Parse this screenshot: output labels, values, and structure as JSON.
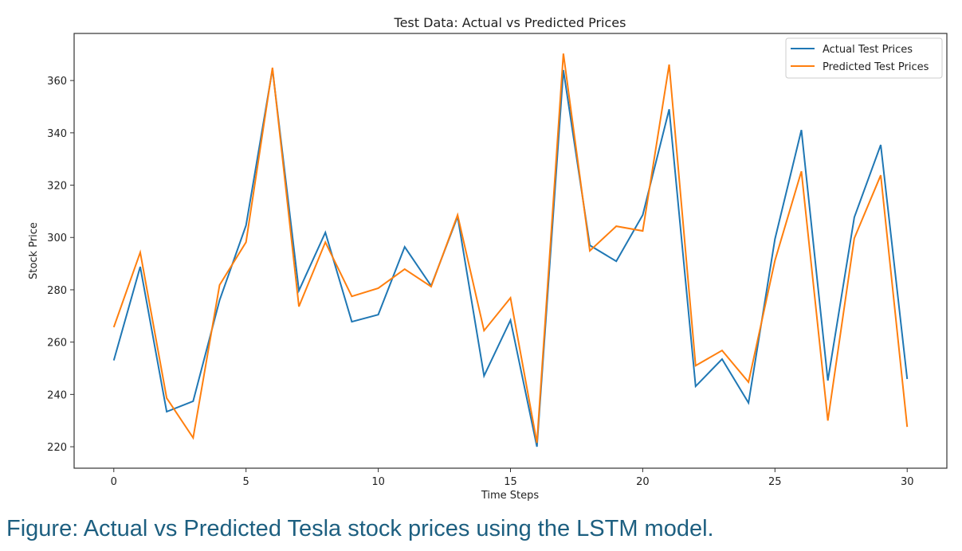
{
  "chart_data": {
    "type": "line",
    "title": "Test Data: Actual vs Predicted Prices",
    "xlabel": "Time Steps",
    "ylabel": "Stock Price",
    "xlim": [
      -1.5,
      31.5
    ],
    "ylim": [
      211.8,
      378
    ],
    "xticks": [
      0,
      5,
      10,
      15,
      20,
      25,
      30
    ],
    "yticks": [
      220,
      240,
      260,
      280,
      300,
      320,
      340,
      360
    ],
    "grid": false,
    "legend_position": "top-right",
    "x": [
      0,
      1,
      2,
      3,
      4,
      5,
      6,
      7,
      8,
      9,
      10,
      11,
      12,
      13,
      14,
      15,
      16,
      17,
      18,
      19,
      20,
      21,
      22,
      23,
      24,
      25,
      26,
      27,
      28,
      29,
      30
    ],
    "series": [
      {
        "name": "Actual Test Prices",
        "color": "#1f77b4",
        "values": [
          253,
          288.8,
          233.4,
          237.4,
          276,
          304.6,
          364.3,
          279.7,
          301.9,
          267.8,
          270.5,
          296.4,
          281.5,
          308,
          247.1,
          268.4,
          220,
          364,
          297,
          290.9,
          308.6,
          349,
          243.1,
          253.5,
          236.8,
          299.4,
          341.1,
          245.3,
          307.7,
          335.4,
          245.9
        ]
      },
      {
        "name": "Predicted Test Prices",
        "color": "#ff7f0e",
        "values": [
          265.7,
          294.3,
          238.6,
          223.4,
          281.8,
          298.2,
          364.9,
          273.6,
          298.2,
          277.5,
          280.6,
          287.9,
          281.2,
          308.6,
          264.4,
          276.9,
          221.5,
          370.3,
          294.9,
          304.3,
          302.5,
          366.1,
          251,
          256.8,
          244.7,
          291.2,
          325.3,
          230,
          299.7,
          323.8,
          227.6
        ]
      }
    ]
  },
  "caption": "Figure: Actual vs Predicted Tesla stock prices using the LSTM model."
}
